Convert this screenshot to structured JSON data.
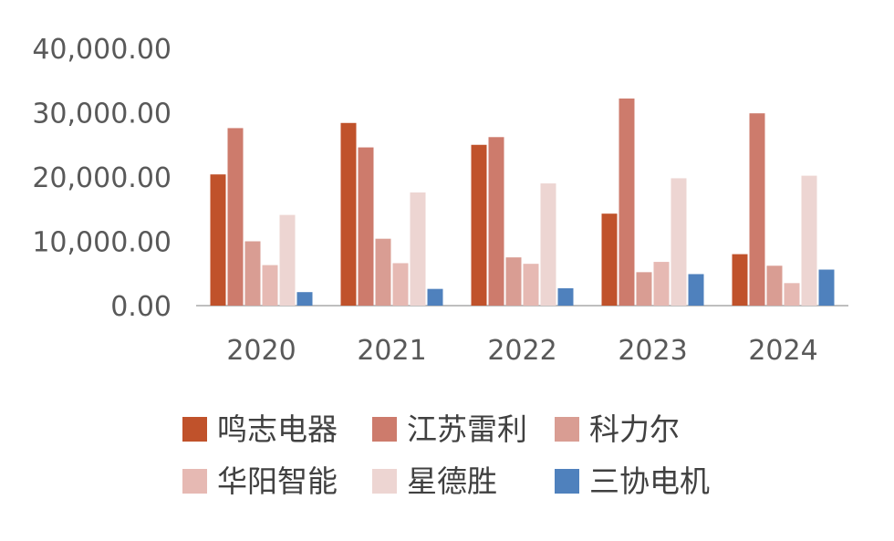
{
  "chart_data": {
    "type": "bar",
    "categories": [
      "2020",
      "2021",
      "2022",
      "2023",
      "2024"
    ],
    "series": [
      {
        "name": "鸣志电器",
        "color": "#C0522B",
        "values": [
          20400,
          28400,
          25000,
          14300,
          8000
        ]
      },
      {
        "name": "江苏雷利",
        "color": "#CD7B6C",
        "values": [
          27600,
          24600,
          26200,
          32200,
          29900
        ]
      },
      {
        "name": "科力尔",
        "color": "#D99D93",
        "values": [
          10000,
          10400,
          7500,
          5200,
          6200
        ]
      },
      {
        "name": "华阳智能",
        "color": "#E6B9B3",
        "values": [
          6300,
          6600,
          6500,
          6800,
          3500
        ]
      },
      {
        "name": "星德胜",
        "color": "#EDD5D2",
        "values": [
          14100,
          17600,
          19000,
          19800,
          20200
        ]
      },
      {
        "name": "三协电机",
        "color": "#4F81BD",
        "values": [
          2100,
          2600,
          2700,
          4900,
          5600
        ]
      }
    ],
    "yticks": [
      "0.00",
      "10,000.00",
      "20,000.00",
      "30,000.00",
      "40,000.00"
    ],
    "ylim": [
      0,
      40000
    ],
    "grid": false,
    "legend_position": "bottom"
  }
}
